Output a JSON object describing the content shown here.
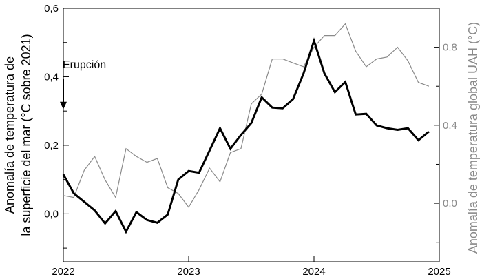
{
  "chart_data": {
    "type": "line",
    "title": "",
    "xlabel": "",
    "x_ticks": [
      "2022",
      "2023",
      "2024",
      "2025"
    ],
    "xlim": [
      2022.0,
      2025.0
    ],
    "y_left": {
      "label_line1": "Anomalía de temperatura de",
      "label_line2": "la superficie del mar (°C sobre 2021)",
      "lim": [
        -0.14,
        0.6
      ],
      "ticks": [
        0.0,
        0.2,
        0.4,
        0.6
      ],
      "tick_labels": [
        "0,0",
        "0,2",
        "0,4",
        "0,6"
      ]
    },
    "y_right": {
      "label": "Anomalía de temperatura global UAH (°C)",
      "lim": [
        -0.3,
        1.0
      ],
      "ticks": [
        0.0,
        0.4,
        0.8
      ],
      "tick_labels": [
        "0.0",
        "0.4",
        "0.8"
      ]
    },
    "series": [
      {
        "axis": "left",
        "color": "#000000",
        "x": [
          2022.0,
          2022.083,
          2022.167,
          2022.25,
          2022.333,
          2022.417,
          2022.5,
          2022.583,
          2022.667,
          2022.75,
          2022.833,
          2022.917,
          2023.0,
          2023.083,
          2023.167,
          2023.25,
          2023.333,
          2023.417,
          2023.5,
          2023.583,
          2023.667,
          2023.75,
          2023.833,
          2023.917,
          2024.0,
          2024.083,
          2024.167,
          2024.25,
          2024.333,
          2024.417,
          2024.5,
          2024.583,
          2024.667,
          2024.75,
          2024.833,
          2024.917
        ],
        "values": [
          0.115,
          0.06,
          0.035,
          0.01,
          -0.028,
          0.008,
          -0.052,
          0.005,
          -0.018,
          -0.026,
          -0.002,
          0.1,
          0.125,
          0.12,
          0.185,
          0.25,
          0.19,
          0.23,
          0.265,
          0.34,
          0.31,
          0.308,
          0.335,
          0.41,
          0.505,
          0.41,
          0.355,
          0.385,
          0.29,
          0.292,
          0.258,
          0.25,
          0.245,
          0.25,
          0.215,
          0.24
        ]
      },
      {
        "axis": "right",
        "color": "#8a8a8a",
        "x": [
          2022.0,
          2022.083,
          2022.167,
          2022.25,
          2022.333,
          2022.417,
          2022.5,
          2022.583,
          2022.667,
          2022.75,
          2022.833,
          2022.917,
          2023.0,
          2023.083,
          2023.167,
          2023.25,
          2023.333,
          2023.417,
          2023.5,
          2023.583,
          2023.667,
          2023.75,
          2023.833,
          2023.917,
          2024.0,
          2024.083,
          2024.167,
          2024.25,
          2024.333,
          2024.417,
          2024.5,
          2024.583,
          2024.667,
          2024.75,
          2024.833,
          2024.917
        ],
        "values": [
          0.04,
          0.03,
          0.17,
          0.24,
          0.12,
          0.03,
          0.28,
          0.24,
          0.21,
          0.23,
          0.08,
          0.05,
          -0.02,
          0.07,
          0.18,
          0.11,
          0.26,
          0.28,
          0.51,
          0.56,
          0.74,
          0.74,
          0.72,
          0.7,
          0.8,
          0.86,
          0.86,
          0.92,
          0.78,
          0.7,
          0.74,
          0.75,
          0.8,
          0.73,
          0.62,
          0.6
        ]
      }
    ],
    "annotations": [
      {
        "text": "Erupción",
        "x": 2022.0,
        "y_text": 0.425,
        "arrow_from": 0.395,
        "arrow_to": 0.305
      }
    ],
    "grid": false,
    "legend": "none"
  }
}
